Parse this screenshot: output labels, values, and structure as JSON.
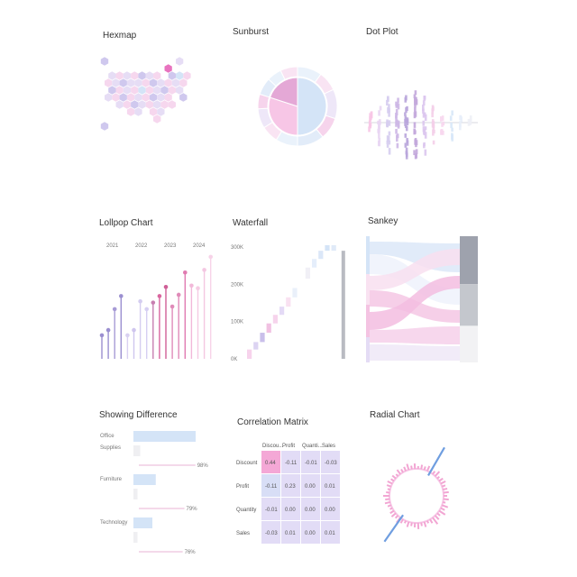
{
  "tiles": {
    "hexmap": "Hexmap",
    "sunburst": "Sunburst",
    "dotplot": "Dot Plot",
    "lollipop": "Lollpop Chart",
    "waterfall": "Waterfall",
    "sankey": "Sankey",
    "difference": "Showing Difference",
    "correlation": "Correlation Matrix",
    "radial": "Radial Chart"
  },
  "colors": {
    "pink": "#f7c6e6",
    "lavender": "#d9d1f1",
    "blue": "#d4e4f7",
    "magenta": "#e86fb3",
    "purple": "#9b8fd0",
    "grey": "#9ea2ad",
    "steel": "#5b8ed6"
  },
  "chart_data": [
    {
      "type": "heatmap",
      "id": "hexmap",
      "title": "Hexmap",
      "rows": [
        {
          "offset": 0.0,
          "values": [
            3,
            0,
            0,
            0,
            0,
            0,
            0,
            0,
            0,
            0,
            2,
            0
          ]
        },
        {
          "offset": 0.5,
          "values": [
            0,
            0,
            0,
            0,
            0,
            0,
            0,
            0,
            6,
            0,
            0
          ]
        },
        {
          "offset": 0.0,
          "values": [
            0,
            2,
            1,
            2,
            1,
            3,
            2,
            1,
            0,
            3,
            4,
            1
          ]
        },
        {
          "offset": 0.5,
          "values": [
            1,
            2,
            3,
            2,
            2,
            1,
            3,
            2,
            1,
            2,
            1
          ]
        },
        {
          "offset": 0.0,
          "values": [
            0,
            3,
            1,
            2,
            1,
            4,
            1,
            2,
            3,
            1,
            2,
            0
          ]
        },
        {
          "offset": 0.5,
          "values": [
            2,
            1,
            3,
            1,
            2,
            1,
            3,
            2,
            1,
            0,
            3
          ]
        },
        {
          "offset": 0.0,
          "values": [
            0,
            0,
            2,
            1,
            3,
            2,
            1,
            2,
            1,
            1,
            0,
            0
          ]
        },
        {
          "offset": 0.5,
          "values": [
            0,
            0,
            0,
            1,
            2,
            0,
            1,
            2,
            0,
            0,
            0
          ]
        },
        {
          "offset": 0.0,
          "values": [
            0,
            0,
            0,
            0,
            0,
            0,
            0,
            1,
            0,
            0,
            0,
            0
          ]
        },
        {
          "offset": 0.0,
          "values": [
            3,
            0,
            0,
            0,
            0,
            0,
            0,
            0,
            0,
            0,
            0,
            0
          ]
        }
      ]
    },
    {
      "type": "pie",
      "id": "sunburst",
      "title": "Sunburst",
      "inner": [
        {
          "name": "A",
          "value": 50
        },
        {
          "name": "B",
          "value": 30
        },
        {
          "name": "C",
          "value": 20
        }
      ],
      "outer": [
        {
          "parent": "A",
          "value": 10
        },
        {
          "parent": "A",
          "value": 8
        },
        {
          "parent": "A",
          "value": 12
        },
        {
          "parent": "A",
          "value": 9
        },
        {
          "parent": "A",
          "value": 11
        },
        {
          "parent": "B",
          "value": 9
        },
        {
          "parent": "B",
          "value": 7
        },
        {
          "parent": "B",
          "value": 8
        },
        {
          "parent": "B",
          "value": 6
        },
        {
          "parent": "C",
          "value": 7
        },
        {
          "parent": "C",
          "value": 6
        },
        {
          "parent": "C",
          "value": 7
        }
      ]
    },
    {
      "type": "scatter",
      "id": "dotplot",
      "title": "Dot Plot",
      "columns": [
        {
          "x": 1,
          "spread": 14,
          "count": 9
        },
        {
          "x": 2,
          "spread": 22,
          "count": 14
        },
        {
          "x": 3,
          "spread": 30,
          "count": 18
        },
        {
          "x": 4,
          "spread": 28,
          "count": 16
        },
        {
          "x": 5,
          "spread": 34,
          "count": 20
        },
        {
          "x": 6,
          "spread": 38,
          "count": 22
        },
        {
          "x": 7,
          "spread": 30,
          "count": 18
        },
        {
          "x": 8,
          "spread": 22,
          "count": 12
        },
        {
          "x": 9,
          "spread": 16,
          "count": 8
        },
        {
          "x": 10,
          "spread": 14,
          "count": 6
        },
        {
          "x": 11,
          "spread": 10,
          "count": 5
        },
        {
          "x": 12,
          "spread": 8,
          "count": 4
        }
      ]
    },
    {
      "type": "line",
      "id": "lollipop",
      "title": "Lollpop Chart",
      "groups": [
        "2021",
        "2022",
        "2023",
        "2024"
      ],
      "values": [
        18,
        22,
        38,
        48,
        18,
        22,
        44,
        38,
        43,
        48,
        55,
        40,
        49,
        66,
        56,
        54,
        68,
        78
      ]
    },
    {
      "type": "bar",
      "id": "waterfall",
      "title": "Waterfall",
      "yticks": [
        "0K",
        "100K",
        "200K",
        "300K"
      ],
      "ylim": [
        0,
        300
      ],
      "steps": [
        {
          "start": 0,
          "end": 25
        },
        {
          "start": 25,
          "end": 45
        },
        {
          "start": 45,
          "end": 70
        },
        {
          "start": 70,
          "end": 95
        },
        {
          "start": 95,
          "end": 118
        },
        {
          "start": 118,
          "end": 140
        },
        {
          "start": 140,
          "end": 165
        },
        {
          "start": 165,
          "end": 190
        },
        {
          "start": 190,
          "end": 215
        },
        {
          "start": 215,
          "end": 245
        },
        {
          "start": 245,
          "end": 268
        },
        {
          "start": 268,
          "end": 290
        },
        {
          "start": 290,
          "end": 305
        },
        {
          "start": 305,
          "end": 290
        }
      ],
      "total": 290
    },
    {
      "type": "area",
      "id": "sankey",
      "title": "Sankey",
      "targets": [
        {
          "value": 0.38
        },
        {
          "value": 0.33
        },
        {
          "value": 0.29
        }
      ]
    },
    {
      "type": "bar",
      "id": "difference",
      "title": "Showing Difference",
      "categories": [
        {
          "label": "Office Supplies",
          "value": 92,
          "base": 10,
          "pct": "98%",
          "pct_value": 98
        },
        {
          "label": "Furniture",
          "value": 33,
          "base": 6,
          "pct": "79%",
          "pct_value": 79
        },
        {
          "label": "Technology",
          "value": 28,
          "base": 6,
          "pct": "76%",
          "pct_value": 76
        }
      ]
    },
    {
      "type": "table",
      "id": "correlation",
      "title": "Correlation Matrix",
      "columns": [
        "Discou...",
        "Profit",
        "Quanti...",
        "Sales"
      ],
      "rows": [
        "Discount",
        "Profit",
        "Quantity",
        "Sales"
      ],
      "values": [
        [
          "0.44",
          "-0.11",
          "-0.01",
          "-0.03"
        ],
        [
          "-0.11",
          "0.23",
          "0.00",
          "0.01"
        ],
        [
          "-0.01",
          "0.00",
          "0.00",
          "0.00"
        ],
        [
          "-0.03",
          "0.01",
          "0.00",
          "0.01"
        ]
      ],
      "highlight": [
        0,
        0
      ]
    },
    {
      "type": "bar",
      "id": "radial",
      "title": "Radial Chart",
      "spikes": [
        4,
        6,
        3,
        7,
        5,
        8,
        4,
        6,
        9,
        5,
        3,
        6,
        4,
        7,
        5,
        4,
        6,
        3,
        5,
        7,
        4,
        6,
        5,
        3,
        4,
        6,
        5,
        7,
        4,
        3,
        5,
        6,
        4,
        5,
        3,
        6,
        4,
        5,
        7,
        4,
        6,
        3,
        5,
        4,
        6,
        5,
        4,
        7,
        3,
        5,
        6,
        4,
        5,
        6
      ],
      "long_spikes": [
        {
          "angle": 30,
          "length": 62
        },
        {
          "angle": 215,
          "length": 62
        }
      ]
    }
  ]
}
